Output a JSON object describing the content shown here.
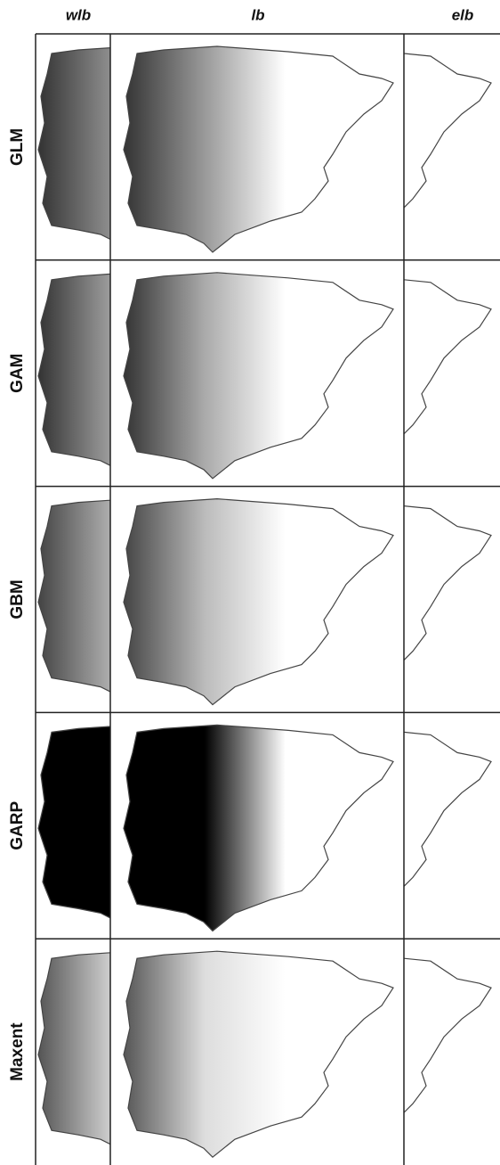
{
  "columns": [
    "wlb",
    "lb",
    "elb"
  ],
  "rows": [
    "GLM",
    "GAM",
    "GBM",
    "GARP",
    "Maxent"
  ]
}
